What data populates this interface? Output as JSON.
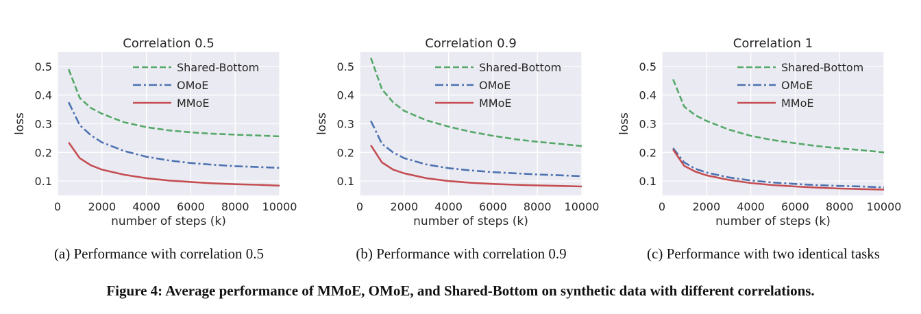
{
  "chart_data": [
    {
      "type": "line",
      "title": "Correlation 0.5",
      "xlabel": "number of steps (k)",
      "ylabel": "loss",
      "xlim": [
        0,
        10000
      ],
      "ylim": [
        0.05,
        0.55
      ],
      "xticks": [
        "0",
        "2000",
        "4000",
        "6000",
        "8000",
        "10000"
      ],
      "yticks": [
        "0.1",
        "0.2",
        "0.3",
        "0.4",
        "0.5"
      ],
      "grid": true,
      "legend": "top-right",
      "x": [
        500,
        1000,
        1500,
        2000,
        3000,
        4000,
        5000,
        6000,
        7000,
        8000,
        9000,
        10000
      ],
      "series": [
        {
          "name": "Shared-Bottom",
          "color": "#55a868",
          "dash": "dashed",
          "values": [
            0.49,
            0.39,
            0.355,
            0.335,
            0.305,
            0.288,
            0.277,
            0.27,
            0.265,
            0.262,
            0.259,
            0.256
          ]
        },
        {
          "name": "OMoE",
          "color": "#4c72b0",
          "dash": "dashdot",
          "values": [
            0.375,
            0.295,
            0.26,
            0.235,
            0.205,
            0.185,
            0.172,
            0.163,
            0.157,
            0.152,
            0.149,
            0.146
          ]
        },
        {
          "name": "MMoE",
          "color": "#c44e52",
          "dash": "solid",
          "values": [
            0.235,
            0.18,
            0.155,
            0.14,
            0.122,
            0.11,
            0.102,
            0.097,
            0.092,
            0.089,
            0.087,
            0.084
          ]
        }
      ]
    },
    {
      "type": "line",
      "title": "Correlation 0.9",
      "xlabel": "number of steps (k)",
      "ylabel": "loss",
      "xlim": [
        0,
        10000
      ],
      "ylim": [
        0.05,
        0.55
      ],
      "xticks": [
        "0",
        "2000",
        "4000",
        "6000",
        "8000",
        "10000"
      ],
      "yticks": [
        "0.1",
        "0.2",
        "0.3",
        "0.4",
        "0.5"
      ],
      "grid": true,
      "legend": "top-right",
      "x": [
        500,
        1000,
        1500,
        2000,
        3000,
        4000,
        5000,
        6000,
        7000,
        8000,
        9000,
        10000
      ],
      "series": [
        {
          "name": "Shared-Bottom",
          "color": "#55a868",
          "dash": "dashed",
          "values": [
            0.53,
            0.42,
            0.375,
            0.345,
            0.312,
            0.29,
            0.272,
            0.258,
            0.246,
            0.237,
            0.23,
            0.222
          ]
        },
        {
          "name": "OMoE",
          "color": "#4c72b0",
          "dash": "dashdot",
          "values": [
            0.31,
            0.23,
            0.2,
            0.18,
            0.158,
            0.145,
            0.137,
            0.131,
            0.127,
            0.123,
            0.12,
            0.117
          ]
        },
        {
          "name": "MMoE",
          "color": "#c44e52",
          "dash": "solid",
          "values": [
            0.225,
            0.165,
            0.14,
            0.127,
            0.11,
            0.1,
            0.094,
            0.09,
            0.087,
            0.085,
            0.083,
            0.081
          ]
        }
      ]
    },
    {
      "type": "line",
      "title": "Correlation 1",
      "xlabel": "number of steps (k)",
      "ylabel": "loss",
      "xlim": [
        0,
        10000
      ],
      "ylim": [
        0.05,
        0.55
      ],
      "xticks": [
        "0",
        "2000",
        "4000",
        "6000",
        "8000",
        "10000"
      ],
      "yticks": [
        "0.1",
        "0.2",
        "0.3",
        "0.4",
        "0.5"
      ],
      "grid": true,
      "legend": "top-right",
      "x": [
        500,
        1000,
        1500,
        2000,
        3000,
        4000,
        5000,
        6000,
        7000,
        8000,
        9000,
        10000
      ],
      "series": [
        {
          "name": "Shared-Bottom",
          "color": "#55a868",
          "dash": "dashed",
          "values": [
            0.455,
            0.36,
            0.33,
            0.31,
            0.28,
            0.258,
            0.243,
            0.232,
            0.222,
            0.214,
            0.208,
            0.2
          ]
        },
        {
          "name": "OMoE",
          "color": "#4c72b0",
          "dash": "dashdot",
          "values": [
            0.215,
            0.165,
            0.143,
            0.13,
            0.113,
            0.102,
            0.095,
            0.09,
            0.086,
            0.083,
            0.081,
            0.078
          ]
        },
        {
          "name": "MMoE",
          "color": "#c44e52",
          "dash": "solid",
          "values": [
            0.21,
            0.153,
            0.133,
            0.12,
            0.104,
            0.093,
            0.086,
            0.081,
            0.077,
            0.074,
            0.072,
            0.07
          ]
        }
      ]
    }
  ],
  "captions": {
    "a": "(a) Performance with correlation 0.5",
    "b": "(b) Performance with correlation 0.9",
    "c": "(c) Performance with two identical tasks",
    "figure": "Figure 4: Average performance of MMoE, OMoE, and Shared-Bottom on synthetic data with different correlations."
  },
  "colors": {
    "plot_background": "#eaeaf2",
    "grid": "#ffffff",
    "text": "#262626"
  }
}
